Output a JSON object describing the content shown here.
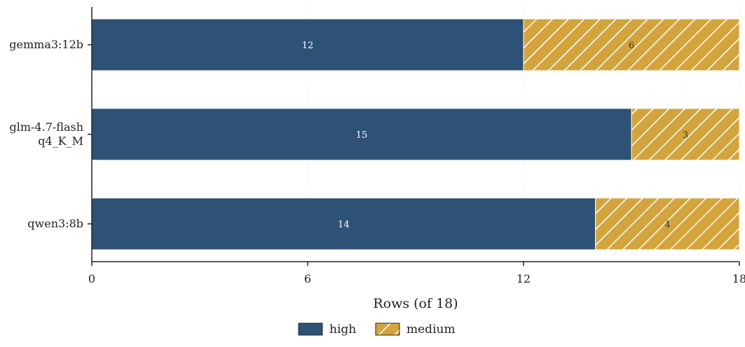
{
  "chart_data": {
    "type": "bar",
    "orientation": "horizontal",
    "stacked": true,
    "categories": [
      "gemma3:12b",
      "glm-4.7-flash\nq4_K_M",
      "qwen3:8b"
    ],
    "series": [
      {
        "name": "high",
        "values": [
          12,
          15,
          14
        ],
        "color": "#2e5275",
        "pattern": "solid"
      },
      {
        "name": "medium",
        "values": [
          6,
          3,
          4
        ],
        "color": "#d4a43c",
        "pattern": "hatch"
      }
    ],
    "xlabel": "Rows (of 18)",
    "ylabel": "",
    "xlim": [
      0,
      18
    ],
    "xticks": [
      0,
      6,
      12,
      18
    ],
    "grid": "x-dotted",
    "legend_position": "bottom-center"
  }
}
